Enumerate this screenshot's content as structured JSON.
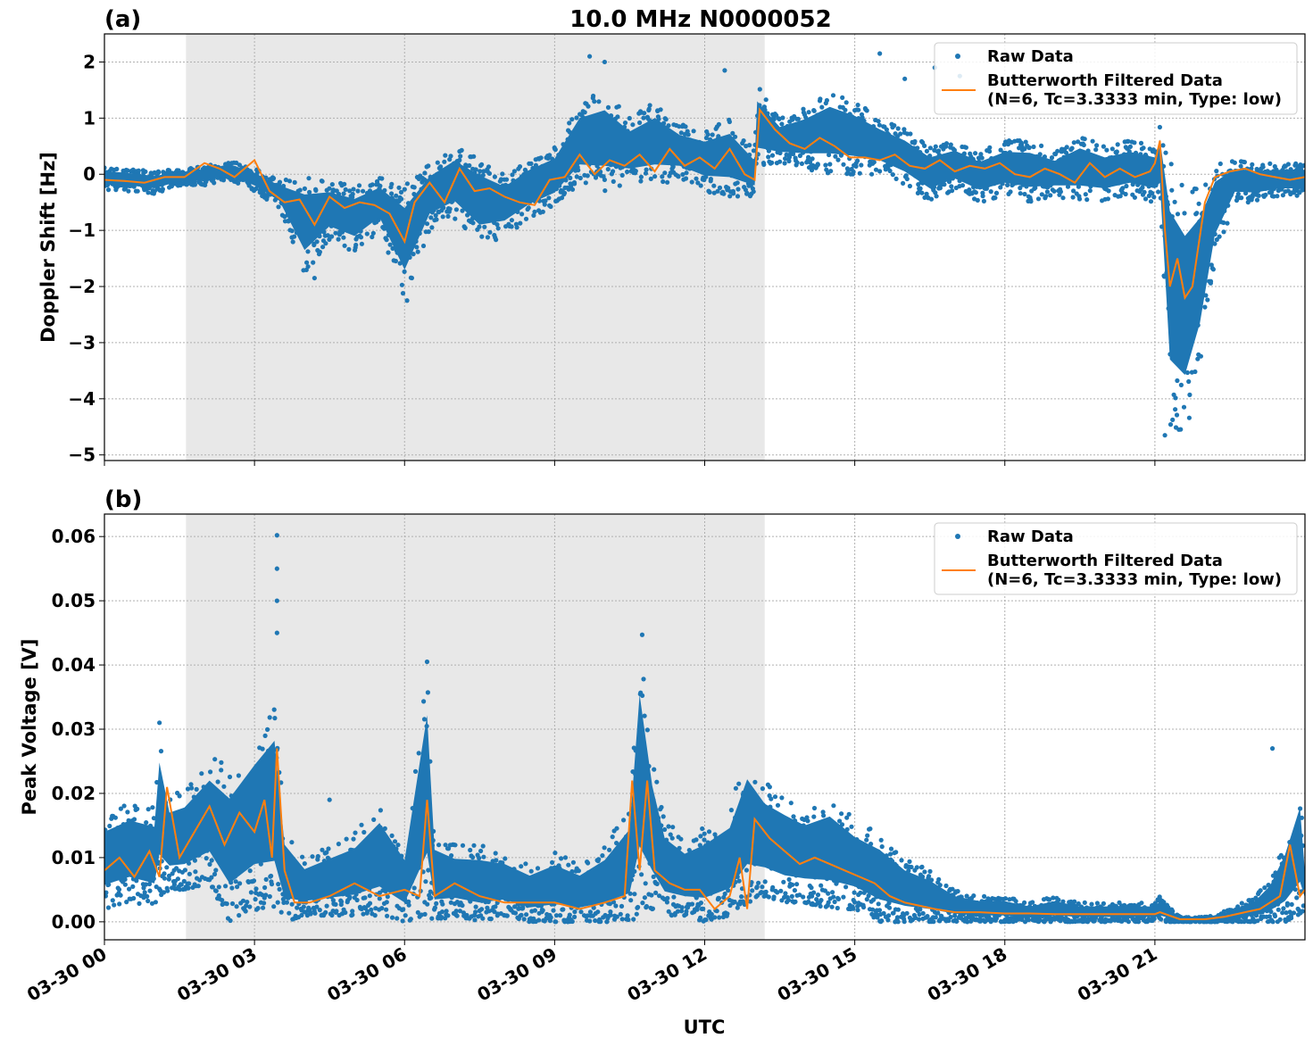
{
  "chart_data": [
    {
      "type": "scatter",
      "panel_label": "(a)",
      "title": "10.0 MHz N0000052",
      "ylabel": "Doppler Shift [Hz]",
      "ylim": [
        -5.1,
        2.5
      ],
      "yticks": [
        2,
        1,
        0,
        -1,
        -2,
        -3,
        -4,
        -5
      ],
      "ytick_labels": [
        "2",
        "1",
        "0",
        "−1",
        "−2",
        "−3",
        "−4",
        "−5"
      ],
      "xlim_hours": [
        0,
        24
      ],
      "shaded_hours": [
        1.63,
        13.2
      ],
      "grid": true,
      "legend": {
        "placement": "upper right",
        "items": [
          {
            "label": "Raw Data",
            "kind": "marker",
            "color": "#1f77b4"
          },
          {
            "label": "Butterworth Filtered Data",
            "label2": "(N=6, Tc=3.3333 min, Type: low)",
            "kind": "line",
            "color": "#ff7f0e"
          }
        ]
      },
      "series": [
        {
          "name": "Raw Data",
          "color": "#1f77b4",
          "envelope_x": [
            0,
            0.5,
            1,
            1.5,
            2,
            2.5,
            3,
            3.5,
            4,
            4.5,
            5,
            5.5,
            6,
            6.5,
            7,
            7.5,
            8,
            8.5,
            9,
            9.5,
            10,
            10.5,
            11,
            11.5,
            12,
            12.5,
            13,
            13.05,
            13.5,
            14,
            14.5,
            15,
            15.5,
            16,
            16.5,
            17,
            17.5,
            18,
            18.5,
            19,
            19.5,
            20,
            20.5,
            21,
            21.1,
            21.3,
            21.6,
            21.9,
            22.2,
            22.6,
            23,
            23.5,
            24
          ],
          "upper": [
            0.15,
            0.1,
            0.05,
            0.1,
            0.15,
            0.25,
            0.1,
            -0.1,
            0.0,
            -0.1,
            -0.2,
            -0.05,
            -0.2,
            0.2,
            0.5,
            0.3,
            0.0,
            0.3,
            0.5,
            1.3,
            1.5,
            1.0,
            1.3,
            0.9,
            0.8,
            1.0,
            0.4,
            1.6,
            1.0,
            1.2,
            1.5,
            1.3,
            1.0,
            0.8,
            0.5,
            0.6,
            0.4,
            0.6,
            0.6,
            0.4,
            0.7,
            0.5,
            0.6,
            0.5,
            0.9,
            0.3,
            -0.2,
            -0.1,
            0.2,
            0.25,
            0.2,
            0.2,
            0.2
          ],
          "lower": [
            -0.3,
            -0.3,
            -0.35,
            -0.2,
            -0.2,
            -0.1,
            -0.3,
            -0.6,
            -1.8,
            -1.2,
            -1.4,
            -1.0,
            -2.2,
            -1.0,
            -0.8,
            -1.3,
            -1.1,
            -0.8,
            -0.6,
            -0.2,
            -0.3,
            -0.2,
            -0.2,
            -0.1,
            -0.3,
            -0.4,
            -0.4,
            0.1,
            0.2,
            0.1,
            0.0,
            0.0,
            0.0,
            -0.2,
            -0.5,
            -0.3,
            -0.5,
            -0.4,
            -0.5,
            -0.4,
            -0.5,
            -0.5,
            -0.4,
            -0.5,
            -0.5,
            -4.5,
            -4.7,
            -3.5,
            -1.5,
            -0.5,
            -0.5,
            -0.4,
            -0.4
          ],
          "outliers": [
            [
              9.7,
              2.1
            ],
            [
              10.0,
              2.0
            ],
            [
              12.4,
              1.85
            ],
            [
              15.5,
              2.15
            ],
            [
              16.0,
              1.7
            ],
            [
              16.6,
              1.9
            ],
            [
              17.1,
              1.75
            ],
            [
              6.05,
              -2.25
            ],
            [
              4.2,
              -1.85
            ],
            [
              21.2,
              -4.65
            ]
          ]
        },
        {
          "name": "Butterworth Filtered Data",
          "color": "#ff7f0e",
          "x": [
            0,
            0.4,
            0.8,
            1.2,
            1.6,
            2.0,
            2.3,
            2.6,
            3.0,
            3.3,
            3.6,
            3.9,
            4.2,
            4.5,
            4.8,
            5.1,
            5.4,
            5.7,
            6.0,
            6.2,
            6.5,
            6.8,
            7.1,
            7.4,
            7.7,
            8.0,
            8.3,
            8.6,
            8.9,
            9.2,
            9.5,
            9.8,
            10.1,
            10.4,
            10.7,
            11.0,
            11.3,
            11.6,
            11.9,
            12.2,
            12.5,
            12.8,
            13.0,
            13.1,
            13.4,
            13.7,
            14.0,
            14.3,
            14.6,
            14.9,
            15.2,
            15.5,
            15.8,
            16.1,
            16.4,
            16.7,
            17.0,
            17.3,
            17.6,
            17.9,
            18.2,
            18.5,
            18.8,
            19.1,
            19.4,
            19.7,
            20.0,
            20.3,
            20.6,
            20.9,
            21.0,
            21.1,
            21.2,
            21.3,
            21.45,
            21.6,
            21.75,
            21.9,
            22.0,
            22.2,
            22.5,
            22.8,
            23.1,
            23.4,
            23.7,
            24.0
          ],
          "y": [
            -0.1,
            -0.12,
            -0.15,
            -0.05,
            -0.05,
            0.2,
            0.1,
            -0.05,
            0.25,
            -0.3,
            -0.5,
            -0.45,
            -0.9,
            -0.4,
            -0.6,
            -0.5,
            -0.55,
            -0.7,
            -1.2,
            -0.5,
            -0.15,
            -0.5,
            0.1,
            -0.3,
            -0.25,
            -0.4,
            -0.5,
            -0.55,
            -0.1,
            -0.05,
            0.35,
            0.0,
            0.25,
            0.15,
            0.35,
            0.05,
            0.45,
            0.15,
            0.3,
            0.1,
            0.45,
            0.0,
            -0.1,
            1.15,
            0.8,
            0.55,
            0.45,
            0.65,
            0.5,
            0.3,
            0.3,
            0.25,
            0.35,
            0.15,
            0.1,
            0.25,
            0.05,
            0.15,
            0.1,
            0.2,
            0.0,
            -0.05,
            0.1,
            0.0,
            -0.15,
            0.2,
            -0.05,
            0.1,
            -0.05,
            0.05,
            0.2,
            0.6,
            -1.0,
            -2.0,
            -1.5,
            -2.2,
            -2.0,
            -1.1,
            -0.5,
            -0.05,
            0.05,
            0.1,
            0.0,
            -0.05,
            -0.1,
            -0.05
          ]
        }
      ]
    },
    {
      "type": "scatter",
      "panel_label": "(b)",
      "xlabel": "UTC",
      "ylabel": "Peak Voltage [V]",
      "ylim": [
        -0.0028,
        0.0635
      ],
      "yticks": [
        0.06,
        0.05,
        0.04,
        0.03,
        0.02,
        0.01,
        0.0
      ],
      "ytick_labels": [
        "0.06",
        "0.05",
        "0.04",
        "0.03",
        "0.02",
        "0.01",
        "0.00"
      ],
      "xlim_hours": [
        0,
        24
      ],
      "xticks_hours": [
        0,
        3,
        6,
        9,
        12,
        15,
        18,
        21
      ],
      "xtick_labels": [
        "03-30 00",
        "03-30 03",
        "03-30 06",
        "03-30 09",
        "03-30 12",
        "03-30 15",
        "03-30 18",
        "03-30 21"
      ],
      "shaded_hours": [
        1.63,
        13.2
      ],
      "grid": true,
      "legend": {
        "placement": "upper right",
        "items": [
          {
            "label": "Raw Data",
            "kind": "marker",
            "color": "#1f77b4"
          },
          {
            "label": "Butterworth Filtered Data",
            "label2": "(N=6, Tc=3.3333 min, Type: low)",
            "kind": "line",
            "color": "#ff7f0e"
          }
        ]
      },
      "series": [
        {
          "name": "Raw Data",
          "color": "#1f77b4",
          "envelope_x": [
            0,
            0.5,
            1.0,
            1.1,
            1.3,
            1.6,
            2.1,
            2.5,
            3.0,
            3.4,
            3.6,
            4.0,
            4.5,
            5.0,
            5.5,
            6.0,
            6.45,
            6.6,
            7.0,
            7.5,
            8.0,
            8.5,
            9.0,
            9.5,
            10.0,
            10.5,
            10.7,
            10.95,
            11.2,
            11.6,
            12.0,
            12.5,
            12.85,
            13.2,
            13.6,
            14.0,
            14.5,
            15.0,
            15.5,
            16.0,
            16.5,
            17.0,
            17.5,
            18.0,
            18.5,
            19.0,
            19.5,
            20.0,
            20.5,
            21.0,
            21.1,
            21.5,
            22.0,
            22.5,
            23.0,
            23.3,
            23.6,
            23.9,
            24.0
          ],
          "upper": [
            0.017,
            0.019,
            0.018,
            0.03,
            0.02,
            0.021,
            0.026,
            0.024,
            0.03,
            0.035,
            0.015,
            0.01,
            0.012,
            0.014,
            0.019,
            0.012,
            0.04,
            0.014,
            0.012,
            0.012,
            0.011,
            0.009,
            0.011,
            0.009,
            0.012,
            0.018,
            0.044,
            0.026,
            0.016,
            0.013,
            0.015,
            0.018,
            0.027,
            0.022,
            0.02,
            0.018,
            0.02,
            0.016,
            0.014,
            0.01,
            0.008,
            0.005,
            0.004,
            0.004,
            0.003,
            0.004,
            0.003,
            0.003,
            0.003,
            0.003,
            0.004,
            0.0008,
            0.0008,
            0.002,
            0.004,
            0.007,
            0.013,
            0.022,
            0.009
          ],
          "lower": [
            0.002,
            0.003,
            0.002,
            0.004,
            0.005,
            0.005,
            0.006,
            0.0,
            0.002,
            0.001,
            0.0,
            0.001,
            0.001,
            0.001,
            0.001,
            0.0,
            0.001,
            0.0,
            0.001,
            0.0,
            0.001,
            0.0,
            0.0,
            0.0,
            0.0,
            0.0,
            0.001,
            0.002,
            0.001,
            0.001,
            0.0,
            0.001,
            0.003,
            0.004,
            0.003,
            0.003,
            0.002,
            0.002,
            0.0,
            0.0,
            0.0,
            0.0,
            0.0,
            0.0,
            0.0,
            0.0,
            0.0,
            0.0,
            0.0,
            0.0,
            0.0,
            0.0,
            0.0,
            0.0,
            0.0,
            0.0,
            0.0,
            0.001,
            0.002
          ],
          "outliers": [
            [
              3.45,
              0.0602
            ],
            [
              3.45,
              0.055
            ],
            [
              3.45,
              0.05
            ],
            [
              3.45,
              0.045
            ],
            [
              6.45,
              0.0405
            ],
            [
              10.75,
              0.0447
            ],
            [
              23.35,
              0.027
            ],
            [
              1.1,
              0.031
            ],
            [
              13.3,
              0.021
            ],
            [
              4.5,
              0.019
            ]
          ]
        },
        {
          "name": "Butterworth Filtered Data",
          "color": "#ff7f0e",
          "x": [
            0,
            0.3,
            0.6,
            0.9,
            1.1,
            1.25,
            1.5,
            1.8,
            2.1,
            2.4,
            2.7,
            3.0,
            3.2,
            3.35,
            3.45,
            3.6,
            3.8,
            4.1,
            4.5,
            5.0,
            5.5,
            6.0,
            6.3,
            6.45,
            6.6,
            7.0,
            7.5,
            8.0,
            8.5,
            9.0,
            9.5,
            10.0,
            10.4,
            10.55,
            10.7,
            10.85,
            11.0,
            11.3,
            11.6,
            11.9,
            12.2,
            12.5,
            12.7,
            12.85,
            13.0,
            13.3,
            13.6,
            13.9,
            14.2,
            14.5,
            14.8,
            15.1,
            15.4,
            15.7,
            16.0,
            16.3,
            16.6,
            17.0,
            17.5,
            18.0,
            18.5,
            19.0,
            19.5,
            20.0,
            20.5,
            21.0,
            21.1,
            21.5,
            22.0,
            22.4,
            22.8,
            23.1,
            23.3,
            23.5,
            23.7,
            23.9,
            24.0
          ],
          "y": [
            0.008,
            0.01,
            0.007,
            0.011,
            0.007,
            0.021,
            0.01,
            0.014,
            0.018,
            0.012,
            0.017,
            0.014,
            0.019,
            0.01,
            0.027,
            0.008,
            0.003,
            0.003,
            0.004,
            0.006,
            0.004,
            0.005,
            0.004,
            0.019,
            0.004,
            0.006,
            0.004,
            0.003,
            0.003,
            0.003,
            0.002,
            0.003,
            0.004,
            0.022,
            0.008,
            0.022,
            0.008,
            0.006,
            0.005,
            0.005,
            0.002,
            0.004,
            0.01,
            0.002,
            0.016,
            0.013,
            0.011,
            0.009,
            0.01,
            0.009,
            0.008,
            0.007,
            0.006,
            0.004,
            0.003,
            0.0025,
            0.002,
            0.0015,
            0.0015,
            0.0013,
            0.0013,
            0.0012,
            0.0012,
            0.0012,
            0.0012,
            0.0012,
            0.0015,
            0.0004,
            0.0004,
            0.0008,
            0.0015,
            0.002,
            0.003,
            0.004,
            0.012,
            0.004,
            0.005
          ]
        }
      ]
    }
  ]
}
